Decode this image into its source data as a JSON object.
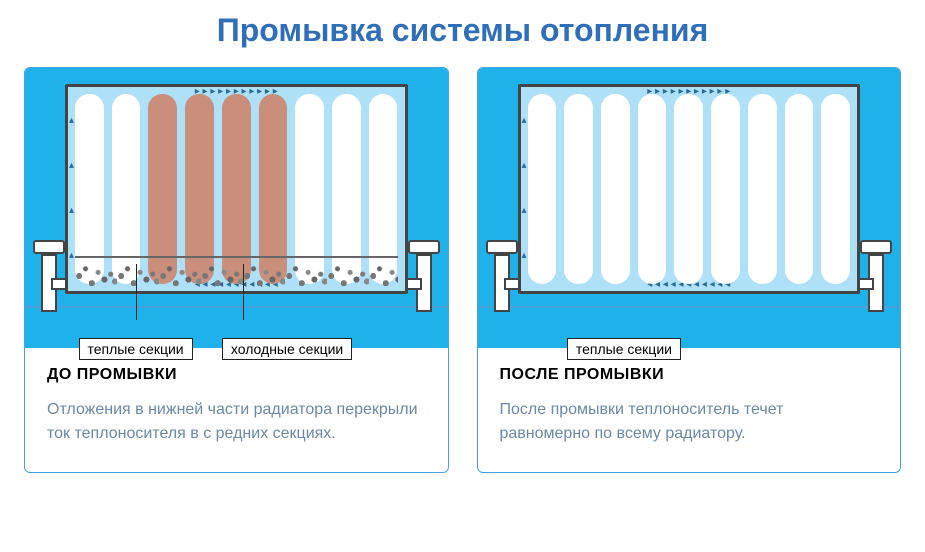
{
  "title": "Промывка системы отопления",
  "title_color": "#2f6fba",
  "panel_border_color": "#4aa0dd",
  "diagram_bg": "#1fb2ea",
  "radiator_water_color": "#aee1f7",
  "radiator_border": "#444444",
  "section_clean_color": "#ffffff",
  "section_blocked_color": "#c98f7a",
  "desc_text_color": "#6a88a8",
  "before": {
    "heading": "ДО ПРОМЫВКИ",
    "text": "Отложения в нижней части радиатора перекрыли ток теплоносителя в с редних секциях.",
    "sections": [
      "clean",
      "clean",
      "blocked",
      "blocked",
      "blocked",
      "blocked",
      "clean",
      "clean",
      "clean"
    ],
    "has_sediment": true,
    "labels": [
      {
        "text": "теплые секции",
        "left_pct": 6
      },
      {
        "text": "холодные секции",
        "left_pct": 46
      }
    ]
  },
  "after": {
    "heading": "ПОСЛЕ ПРОМЫВКИ",
    "text": "После промывки теплоноситель течет равномерно по всему радиатору.",
    "sections": [
      "clean",
      "clean",
      "clean",
      "clean",
      "clean",
      "clean",
      "clean",
      "clean",
      "clean"
    ],
    "has_sediment": false,
    "labels": [
      {
        "text": "теплые секции",
        "left_pct": 16
      }
    ]
  }
}
